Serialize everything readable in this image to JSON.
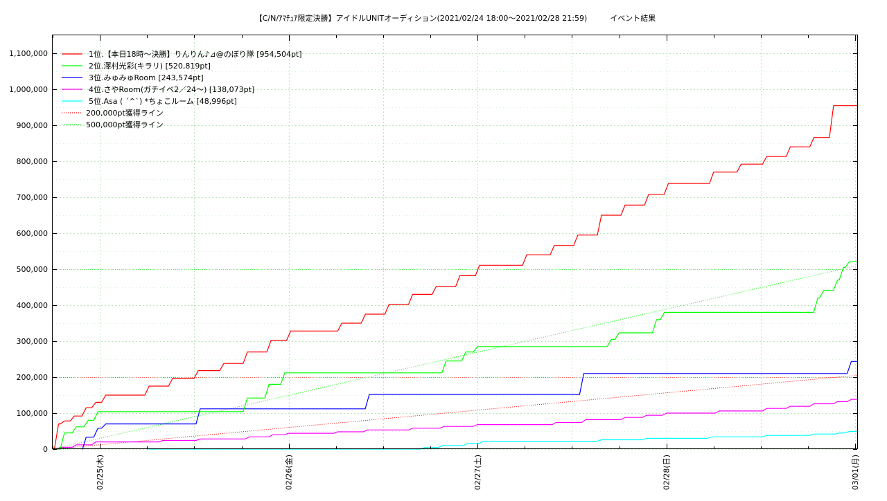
{
  "chart_data": {
    "type": "line",
    "title": "【C/N/ｱﾏﾁｭｱ限定決勝】アイドルUNITオーディション(2021/02/24 18:00〜2021/02/28 21:59)　　　イベント結果",
    "xlabel": "",
    "ylabel": "",
    "x_tick_labels": [
      "02/25(木)",
      "02/26(金)",
      "02/27(土)",
      "02/28(日)",
      "03/01(月)"
    ],
    "x_range": [
      "2021-02-24 18:00",
      "2021-03-01 00:15"
    ],
    "y_ticks": [
      "0",
      "100,000",
      "200,000",
      "300,000",
      "400,000",
      "500,000",
      "600,000",
      "700,000",
      "800,000",
      "900,000",
      "1,000,000",
      "1,100,000"
    ],
    "ylim": [
      0,
      1150000
    ],
    "grid": true,
    "legend_position": "top-left",
    "series": [
      {
        "name": "1位.【本日18時〜決勝】りんりん♪⊿@のぼり隊 [954,504pt]",
        "color": "#ff0000",
        "style": "solid",
        "steps": [
          [
            "2021-02-24 18:00",
            0
          ],
          [
            "2021-02-24 18:45",
            70000
          ],
          [
            "2021-02-24 19:30",
            78000
          ],
          [
            "2021-02-24 20:45",
            92000
          ],
          [
            "2021-02-24 22:15",
            115000
          ],
          [
            "2021-02-24 23:30",
            130000
          ],
          [
            "2021-02-25 00:45",
            150000
          ],
          [
            "2021-02-25 06:15",
            175000
          ],
          [
            "2021-02-25 09:15",
            197000
          ],
          [
            "2021-02-25 12:30",
            218000
          ],
          [
            "2021-02-25 15:45",
            238000
          ],
          [
            "2021-02-25 18:45",
            270000
          ],
          [
            "2021-02-25 21:45",
            302000
          ],
          [
            "2021-02-26 00:15",
            328000
          ],
          [
            "2021-02-26 06:45",
            350000
          ],
          [
            "2021-02-26 09:45",
            375000
          ],
          [
            "2021-02-26 12:45",
            402000
          ],
          [
            "2021-02-26 15:45",
            430000
          ],
          [
            "2021-02-26 18:45",
            452000
          ],
          [
            "2021-02-26 21:45",
            482000
          ],
          [
            "2021-02-27 00:15",
            511000
          ],
          [
            "2021-02-27 06:15",
            540000
          ],
          [
            "2021-02-27 09:45",
            566000
          ],
          [
            "2021-02-27 12:45",
            595000
          ],
          [
            "2021-02-27 15:45",
            650000
          ],
          [
            "2021-02-27 18:45",
            678000
          ],
          [
            "2021-02-27 21:45",
            708000
          ],
          [
            "2021-02-28 00:15",
            738000
          ],
          [
            "2021-02-28 06:00",
            770000
          ],
          [
            "2021-02-28 09:30",
            792000
          ],
          [
            "2021-02-28 12:45",
            813000
          ],
          [
            "2021-02-28 15:45",
            840000
          ],
          [
            "2021-02-28 18:45",
            866000
          ],
          [
            "2021-02-28 21:15",
            954504
          ],
          [
            "2021-03-01 00:15",
            954504
          ]
        ]
      },
      {
        "name": "2位.澤村光彩(キラリ) [520,819pt]",
        "color": "#00ff00",
        "style": "solid",
        "steps": [
          [
            "2021-02-24 18:00",
            0
          ],
          [
            "2021-02-24 19:30",
            45000
          ],
          [
            "2021-02-24 21:00",
            62000
          ],
          [
            "2021-02-24 22:30",
            80000
          ],
          [
            "2021-02-24 23:45",
            104000
          ],
          [
            "2021-02-25 18:45",
            142000
          ],
          [
            "2021-02-25 21:30",
            180000
          ],
          [
            "2021-02-25 23:30",
            212000
          ],
          [
            "2021-02-26 20:00",
            245000
          ],
          [
            "2021-02-26 22:30",
            270000
          ],
          [
            "2021-02-27 00:00",
            285000
          ],
          [
            "2021-02-27 17:00",
            305000
          ],
          [
            "2021-02-27 18:00",
            323000
          ],
          [
            "2021-02-27 22:45",
            360000
          ],
          [
            "2021-02-27 23:45",
            380000
          ],
          [
            "2021-02-28 19:15",
            420000
          ],
          [
            "2021-02-28 20:00",
            441000
          ],
          [
            "2021-02-28 21:45",
            470000
          ],
          [
            "2021-02-28 22:30",
            505000
          ],
          [
            "2021-02-28 23:15",
            520819
          ],
          [
            "2021-03-01 00:15",
            520819
          ]
        ]
      },
      {
        "name": "3位.みゅみゅRoom [243,574pt]",
        "color": "#0000ff",
        "style": "solid",
        "steps": [
          [
            "2021-02-24 21:45",
            0
          ],
          [
            "2021-02-24 22:15",
            33000
          ],
          [
            "2021-02-24 23:45",
            58000
          ],
          [
            "2021-02-25 00:45",
            70000
          ],
          [
            "2021-02-25 12:45",
            112000
          ],
          [
            "2021-02-26 10:15",
            152000
          ],
          [
            "2021-02-27 13:30",
            210000
          ],
          [
            "2021-02-28 23:30",
            243574
          ],
          [
            "2021-03-01 00:15",
            243574
          ]
        ]
      },
      {
        "name": "4位.さやRoom(ガチイベ2／24〜) [138,073pt]",
        "color": "#ff00ff",
        "style": "solid",
        "steps": [
          [
            "2021-02-24 18:00",
            0
          ],
          [
            "2021-02-24 19:00",
            5000
          ],
          [
            "2021-02-24 21:00",
            12000
          ],
          [
            "2021-02-24 23:30",
            20000
          ],
          [
            "2021-02-25 08:00",
            24000
          ],
          [
            "2021-02-25 12:45",
            28000
          ],
          [
            "2021-02-25 19:00",
            34000
          ],
          [
            "2021-02-25 22:00",
            40000
          ],
          [
            "2021-02-26 00:00",
            44000
          ],
          [
            "2021-02-26 06:15",
            48000
          ],
          [
            "2021-02-26 10:00",
            53000
          ],
          [
            "2021-02-26 15:45",
            58000
          ],
          [
            "2021-02-26 19:45",
            63000
          ],
          [
            "2021-02-27 00:00",
            68000
          ],
          [
            "2021-02-27 10:00",
            74000
          ],
          [
            "2021-02-27 13:45",
            82000
          ],
          [
            "2021-02-27 18:45",
            88000
          ],
          [
            "2021-02-27 21:30",
            94000
          ],
          [
            "2021-02-28 00:00",
            100000
          ],
          [
            "2021-02-28 06:45",
            106000
          ],
          [
            "2021-02-28 12:45",
            113000
          ],
          [
            "2021-02-28 15:45",
            119000
          ],
          [
            "2021-02-28 18:45",
            126000
          ],
          [
            "2021-02-28 21:45",
            132000
          ],
          [
            "2021-02-28 23:30",
            138073
          ],
          [
            "2021-03-01 00:15",
            138073
          ]
        ]
      },
      {
        "name": "5位.Asa ( ´^`) *ちょこルーム [48,996pt]",
        "color": "#00ffff",
        "style": "solid",
        "steps": [
          [
            "2021-02-25 06:00",
            0
          ],
          [
            "2021-02-26 17:15",
            4000
          ],
          [
            "2021-02-26 19:30",
            10000
          ],
          [
            "2021-02-26 22:45",
            16000
          ],
          [
            "2021-02-27 00:45",
            22000
          ],
          [
            "2021-02-27 15:45",
            26000
          ],
          [
            "2021-02-27 21:30",
            30000
          ],
          [
            "2021-02-28 05:45",
            34000
          ],
          [
            "2021-02-28 12:45",
            38000
          ],
          [
            "2021-02-28 18:45",
            42000
          ],
          [
            "2021-02-28 22:00",
            45000
          ],
          [
            "2021-02-28 23:15",
            48996
          ],
          [
            "2021-03-01 00:15",
            48996
          ]
        ]
      },
      {
        "name": "200,000pt獲得ライン",
        "color": "#ff0000",
        "style": "dotted",
        "points": [
          [
            "2021-02-24 18:00",
            0
          ],
          [
            "2021-03-01 00:15",
            205000
          ]
        ]
      },
      {
        "name": "500,000pt獲得ライン",
        "color": "#00ff00",
        "style": "dotted",
        "points": [
          [
            "2021-02-24 18:00",
            0
          ],
          [
            "2021-03-01 00:15",
            510000
          ]
        ]
      }
    ],
    "reference_lines": [
      {
        "value": 200000,
        "color": "#ff0000"
      },
      {
        "value": 500000,
        "color": "#00ff00"
      }
    ]
  }
}
